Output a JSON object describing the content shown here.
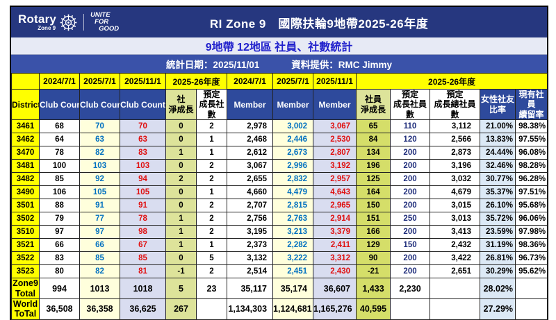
{
  "banner": {
    "logo": {
      "brand": "Rotary",
      "zone": "Zone 9",
      "tagline": [
        "UNITE",
        "FOR",
        "GOOD"
      ]
    },
    "title": "RI Zone 9　國際扶輪9地帶2025-26年度",
    "subtitle": "9地帶 12地區 社員、社數統計",
    "stat_date": "統計日期：2025/11/01",
    "provider": "資料提供：RMC Jimmy"
  },
  "table": {
    "top": {
      "blank": "",
      "club_dates": [
        "2024/7/1",
        "2025/7/1",
        "2025/11/1"
      ],
      "club_period": "2025-26年度",
      "member_dates": [
        "2024/7/1",
        "2025/7/1",
        "2025/11/1"
      ],
      "member_period": "2025-26年度"
    },
    "cols": {
      "district": "District",
      "club_count": "Club Count",
      "club_net": "社\n淨成長",
      "club_planned": "預定\n成長社數",
      "member": "Member",
      "member_net": "社員\n淨成長",
      "member_planned": "預定\n成長社員數",
      "member_planned_total": "預定\n成長總社員數",
      "female_ratio": "女性社友\n比率",
      "retention": "現有社員\n續留率"
    },
    "rows": [
      [
        "3461",
        "68",
        "70",
        "70",
        "0",
        "2",
        "2,978",
        "3,002",
        "3,067",
        "65",
        "110",
        "3,112",
        "21.00%",
        "98.38%"
      ],
      [
        "3462",
        "64",
        "63",
        "63",
        "0",
        "1",
        "2,468",
        "2,446",
        "2,530",
        "84",
        "120",
        "2,566",
        "13.83%",
        "97.55%"
      ],
      [
        "3470",
        "78",
        "82",
        "83",
        "1",
        "1",
        "2,612",
        "2,673",
        "2,807",
        "134",
        "200",
        "2,873",
        "24.44%",
        "96.08%"
      ],
      [
        "3481",
        "100",
        "103",
        "103",
        "0",
        "2",
        "3,067",
        "2,996",
        "3,192",
        "196",
        "200",
        "3,196",
        "32.46%",
        "98.28%"
      ],
      [
        "3482",
        "85",
        "92",
        "94",
        "2",
        "2",
        "2,655",
        "2,832",
        "2,957",
        "125",
        "200",
        "3,032",
        "30.77%",
        "96.28%"
      ],
      [
        "3490",
        "106",
        "105",
        "105",
        "0",
        "1",
        "4,660",
        "4,479",
        "4,643",
        "164",
        "200",
        "4,679",
        "35.37%",
        "97.51%"
      ],
      [
        "3501",
        "88",
        "91",
        "91",
        "0",
        "2",
        "2,707",
        "2,815",
        "2,965",
        "150",
        "200",
        "3,015",
        "26.10%",
        "95.68%"
      ],
      [
        "3502",
        "79",
        "77",
        "78",
        "1",
        "2",
        "2,756",
        "2,763",
        "2,914",
        "151",
        "250",
        "3,013",
        "35.72%",
        "96.06%"
      ],
      [
        "3510",
        "97",
        "97",
        "98",
        "1",
        "2",
        "3,195",
        "3,213",
        "3,379",
        "166",
        "200",
        "3,413",
        "23.59%",
        "97.98%"
      ],
      [
        "3521",
        "66",
        "66",
        "67",
        "1",
        "1",
        "2,373",
        "2,282",
        "2,411",
        "129",
        "150",
        "2,432",
        "31.19%",
        "98.36%"
      ],
      [
        "3522",
        "83",
        "85",
        "85",
        "0",
        "5",
        "3,132",
        "3,222",
        "3,312",
        "90",
        "200",
        "3,422",
        "26.81%",
        "96.73%"
      ],
      [
        "3523",
        "80",
        "82",
        "81",
        "-1",
        "2",
        "2,514",
        "2,451",
        "2,430",
        "-21",
        "200",
        "2,651",
        "30.29%",
        "95.62%"
      ]
    ],
    "totals": [
      {
        "label": "Zone9\nTotal",
        "cells": [
          "994",
          "1013",
          "1018",
          "5",
          "23",
          "35,117",
          "35,174",
          "36,607",
          "1,433",
          "2,230",
          "",
          "28.02%",
          ""
        ]
      },
      {
        "label": "World\nToTal",
        "cells": [
          "36,508",
          "36,358",
          "36,625",
          "267",
          "",
          "1,134,303",
          "1,124,681",
          "1,165,276",
          "40,595",
          "",
          "",
          "27.29%",
          ""
        ]
      }
    ]
  },
  "colors": {
    "navy_band": "#26377F",
    "light_band": "#E7EAF5",
    "blue_band": "#3A52A9",
    "header_navy": "#2E4A9C",
    "yellow": "#FFFF00",
    "col_light_yellow": "#FFFFDC",
    "col_lavender": "#D9DDF0",
    "col_green_club": "#DDE39A",
    "col_green_member": "#D5DE69",
    "col_light_blue": "#DCE9F6",
    "text_blue": "#0070C0",
    "text_red": "#E01010",
    "text_navy": "#1F2D7B"
  }
}
